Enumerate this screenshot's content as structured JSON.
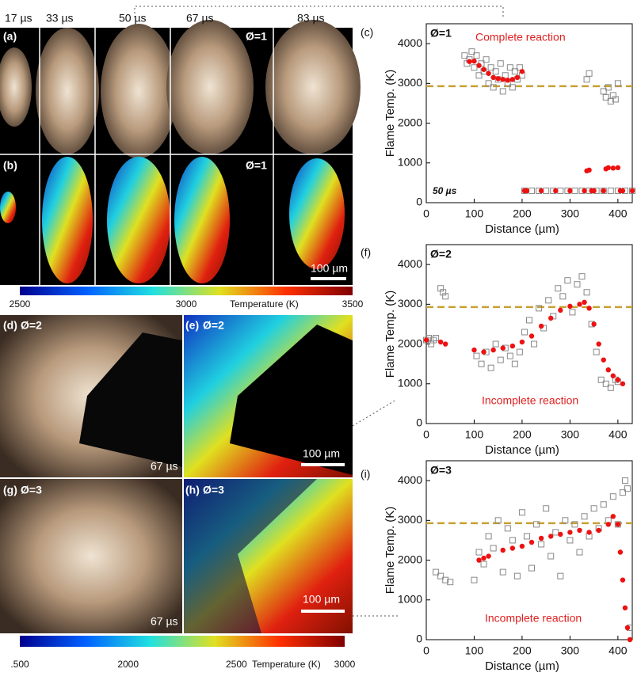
{
  "figure": {
    "times": [
      "17 µs",
      "33 µs",
      "50 µs",
      "67 µs",
      "83 µs"
    ],
    "image_panels": [
      {
        "label": "(a)",
        "phi": "Ø=1"
      },
      {
        "label": "(b)",
        "phi": "Ø=1",
        "scale_bar": "100 µm"
      },
      {
        "label": "(d)",
        "phi": "Ø=2",
        "time": "67 µs"
      },
      {
        "label": "(e)",
        "phi": "Ø=2",
        "scale_bar": "100 µm"
      },
      {
        "label": "(g)",
        "phi": "Ø=3",
        "time": "67 µs"
      },
      {
        "label": "(h)",
        "phi": "Ø=3",
        "scale_bar": "100 µm"
      }
    ],
    "colorbars": [
      {
        "lim": [
          2500,
          3500
        ],
        "ticks": [
          2500,
          3000,
          3500
        ],
        "label": "Temperature (K)"
      },
      {
        "lim": [
          1500,
          3000
        ],
        "ticks": [
          {
            "value": 1500,
            "label": ".500"
          },
          2000,
          2500,
          3000
        ],
        "label": "Temperature (K)"
      }
    ]
  },
  "chart_data": [
    {
      "type": "scatter",
      "panel": "(c)",
      "phi": "Ø=1",
      "annotation": "Complete reaction",
      "time": "50 µs",
      "x_label": "Distance (µm)",
      "y_label": "Flame Temp. (K)",
      "xlim": [
        0,
        430
      ],
      "ylim": [
        0,
        4500
      ],
      "xticks": [
        0,
        100,
        200,
        300,
        400
      ],
      "yticks": [
        0,
        1000,
        2000,
        3000,
        4000
      ],
      "reference_line": {
        "value": 2930,
        "color": "#c8a032"
      },
      "series": [
        {
          "color": "#888888",
          "marker": "square",
          "x": [
            80,
            85,
            90,
            95,
            100,
            105,
            110,
            115,
            120,
            125,
            130,
            135,
            140,
            145,
            150,
            155,
            160,
            165,
            170,
            175,
            180,
            185,
            190,
            195,
            200,
            335,
            340,
            370,
            375,
            380,
            385,
            390,
            395,
            400
          ],
          "values": [
            3700,
            3500,
            3600,
            3800,
            3400,
            3700,
            3200,
            3500,
            3300,
            3600,
            3000,
            3400,
            2900,
            3300,
            3100,
            3500,
            2800,
            3200,
            3000,
            3400,
            2900,
            3300,
            3100,
            3400,
            3200,
            3100,
            3250,
            2800,
            2650,
            2900,
            2550,
            2700,
            2600,
            3000
          ]
        },
        {
          "color": "#888888",
          "marker": "square",
          "x": [
            205,
            220,
            235,
            250,
            265,
            280,
            295,
            310,
            325,
            340,
            355,
            370,
            385,
            400,
            415,
            430
          ],
          "values": [
            300,
            300,
            300,
            300,
            300,
            300,
            300,
            300,
            300,
            300,
            300,
            300,
            300,
            300,
            300,
            300
          ]
        },
        {
          "color": "#ee1111",
          "marker": "dot",
          "x": [
            90,
            100,
            110,
            120,
            130,
            140,
            150,
            160,
            170,
            180,
            190,
            200,
            205,
            210,
            240,
            270,
            300,
            330,
            335,
            340,
            345,
            350,
            370,
            375,
            380,
            390,
            400,
            405,
            410,
            430
          ],
          "values": [
            3550,
            3560,
            3450,
            3350,
            3250,
            3150,
            3120,
            3100,
            3080,
            3100,
            3150,
            3300,
            300,
            300,
            300,
            300,
            300,
            300,
            800,
            820,
            300,
            300,
            300,
            850,
            880,
            870,
            880,
            300,
            300,
            300
          ]
        }
      ]
    },
    {
      "type": "scatter",
      "panel": "(f)",
      "phi": "Ø=2",
      "annotation": "Incomplete reaction",
      "x_label": "Distance (µm)",
      "y_label": "Flame Temp. (K)",
      "xlim": [
        0,
        430
      ],
      "ylim": [
        0,
        4500
      ],
      "xticks": [
        0,
        100,
        200,
        300,
        400
      ],
      "yticks": [
        0,
        1000,
        2000,
        3000,
        4000
      ],
      "reference_line": {
        "value": 2930,
        "color": "#c8a032"
      },
      "series": [
        {
          "color": "#888888",
          "marker": "square",
          "x": [
            0,
            5,
            10,
            15,
            20,
            30,
            35,
            40,
            105,
            115,
            125,
            135,
            145,
            155,
            165,
            175,
            185,
            195,
            205,
            215,
            225,
            235,
            245,
            255,
            265,
            275,
            285,
            295,
            305,
            315,
            325,
            335,
            345,
            355,
            365,
            375,
            385,
            395,
            400
          ],
          "values": [
            2100,
            2150,
            2000,
            2100,
            2150,
            3400,
            3300,
            3200,
            1700,
            1500,
            1800,
            1400,
            2000,
            1600,
            1900,
            1700,
            1500,
            1800,
            2300,
            2600,
            2000,
            2900,
            2400,
            3100,
            2700,
            3400,
            3200,
            3600,
            2800,
            3500,
            3700,
            3300,
            2500,
            1800,
            1100,
            1000,
            900,
            1100,
            1050
          ]
        },
        {
          "color": "#ee1111",
          "marker": "dot",
          "x": [
            0,
            30,
            40,
            100,
            120,
            140,
            160,
            180,
            200,
            220,
            240,
            260,
            280,
            300,
            320,
            330,
            340,
            350,
            360,
            370,
            380,
            390,
            400,
            410
          ],
          "values": [
            2100,
            2050,
            2000,
            1850,
            1800,
            1850,
            1900,
            1950,
            2050,
            2200,
            2450,
            2650,
            2850,
            2950,
            3000,
            3050,
            2900,
            2500,
            2000,
            1600,
            1350,
            1200,
            1100,
            1000
          ]
        }
      ]
    },
    {
      "type": "scatter",
      "panel": "(i)",
      "phi": "Ø=3",
      "annotation": "Incomplete reaction",
      "x_label": "Distance (µm)",
      "y_label": "Flame Temp. (K)",
      "xlim": [
        0,
        430
      ],
      "ylim": [
        0,
        4500
      ],
      "xticks": [
        0,
        100,
        200,
        300,
        400
      ],
      "yticks": [
        0,
        1000,
        2000,
        3000,
        4000
      ],
      "reference_line": {
        "value": 2930,
        "color": "#c8a032"
      },
      "series": [
        {
          "color": "#888888",
          "marker": "square",
          "x": [
            20,
            30,
            40,
            50,
            100,
            110,
            120,
            130,
            140,
            150,
            160,
            170,
            180,
            190,
            200,
            210,
            220,
            230,
            240,
            250,
            260,
            270,
            280,
            290,
            300,
            310,
            320,
            330,
            340,
            350,
            360,
            370,
            380,
            390,
            400,
            410,
            415,
            420,
            425
          ],
          "values": [
            1700,
            1600,
            1500,
            1450,
            1500,
            2200,
            1900,
            2600,
            2300,
            3000,
            1700,
            2800,
            2500,
            1600,
            3200,
            2600,
            1800,
            2900,
            2400,
            3300,
            2100,
            2700,
            1600,
            3000,
            2500,
            2900,
            2200,
            3100,
            2600,
            3300,
            2800,
            3400,
            3000,
            3600,
            2900,
            3700,
            4000,
            3800,
            300
          ]
        },
        {
          "color": "#ee1111",
          "marker": "dot",
          "x": [
            110,
            120,
            130,
            160,
            180,
            200,
            220,
            240,
            260,
            280,
            300,
            320,
            340,
            360,
            380,
            390,
            400,
            405,
            410,
            415,
            420,
            425
          ],
          "values": [
            2000,
            2050,
            2100,
            2250,
            2300,
            2350,
            2450,
            2550,
            2600,
            2650,
            2700,
            2750,
            2700,
            2750,
            2900,
            3100,
            2900,
            2200,
            1500,
            800,
            300,
            0
          ]
        }
      ]
    }
  ]
}
